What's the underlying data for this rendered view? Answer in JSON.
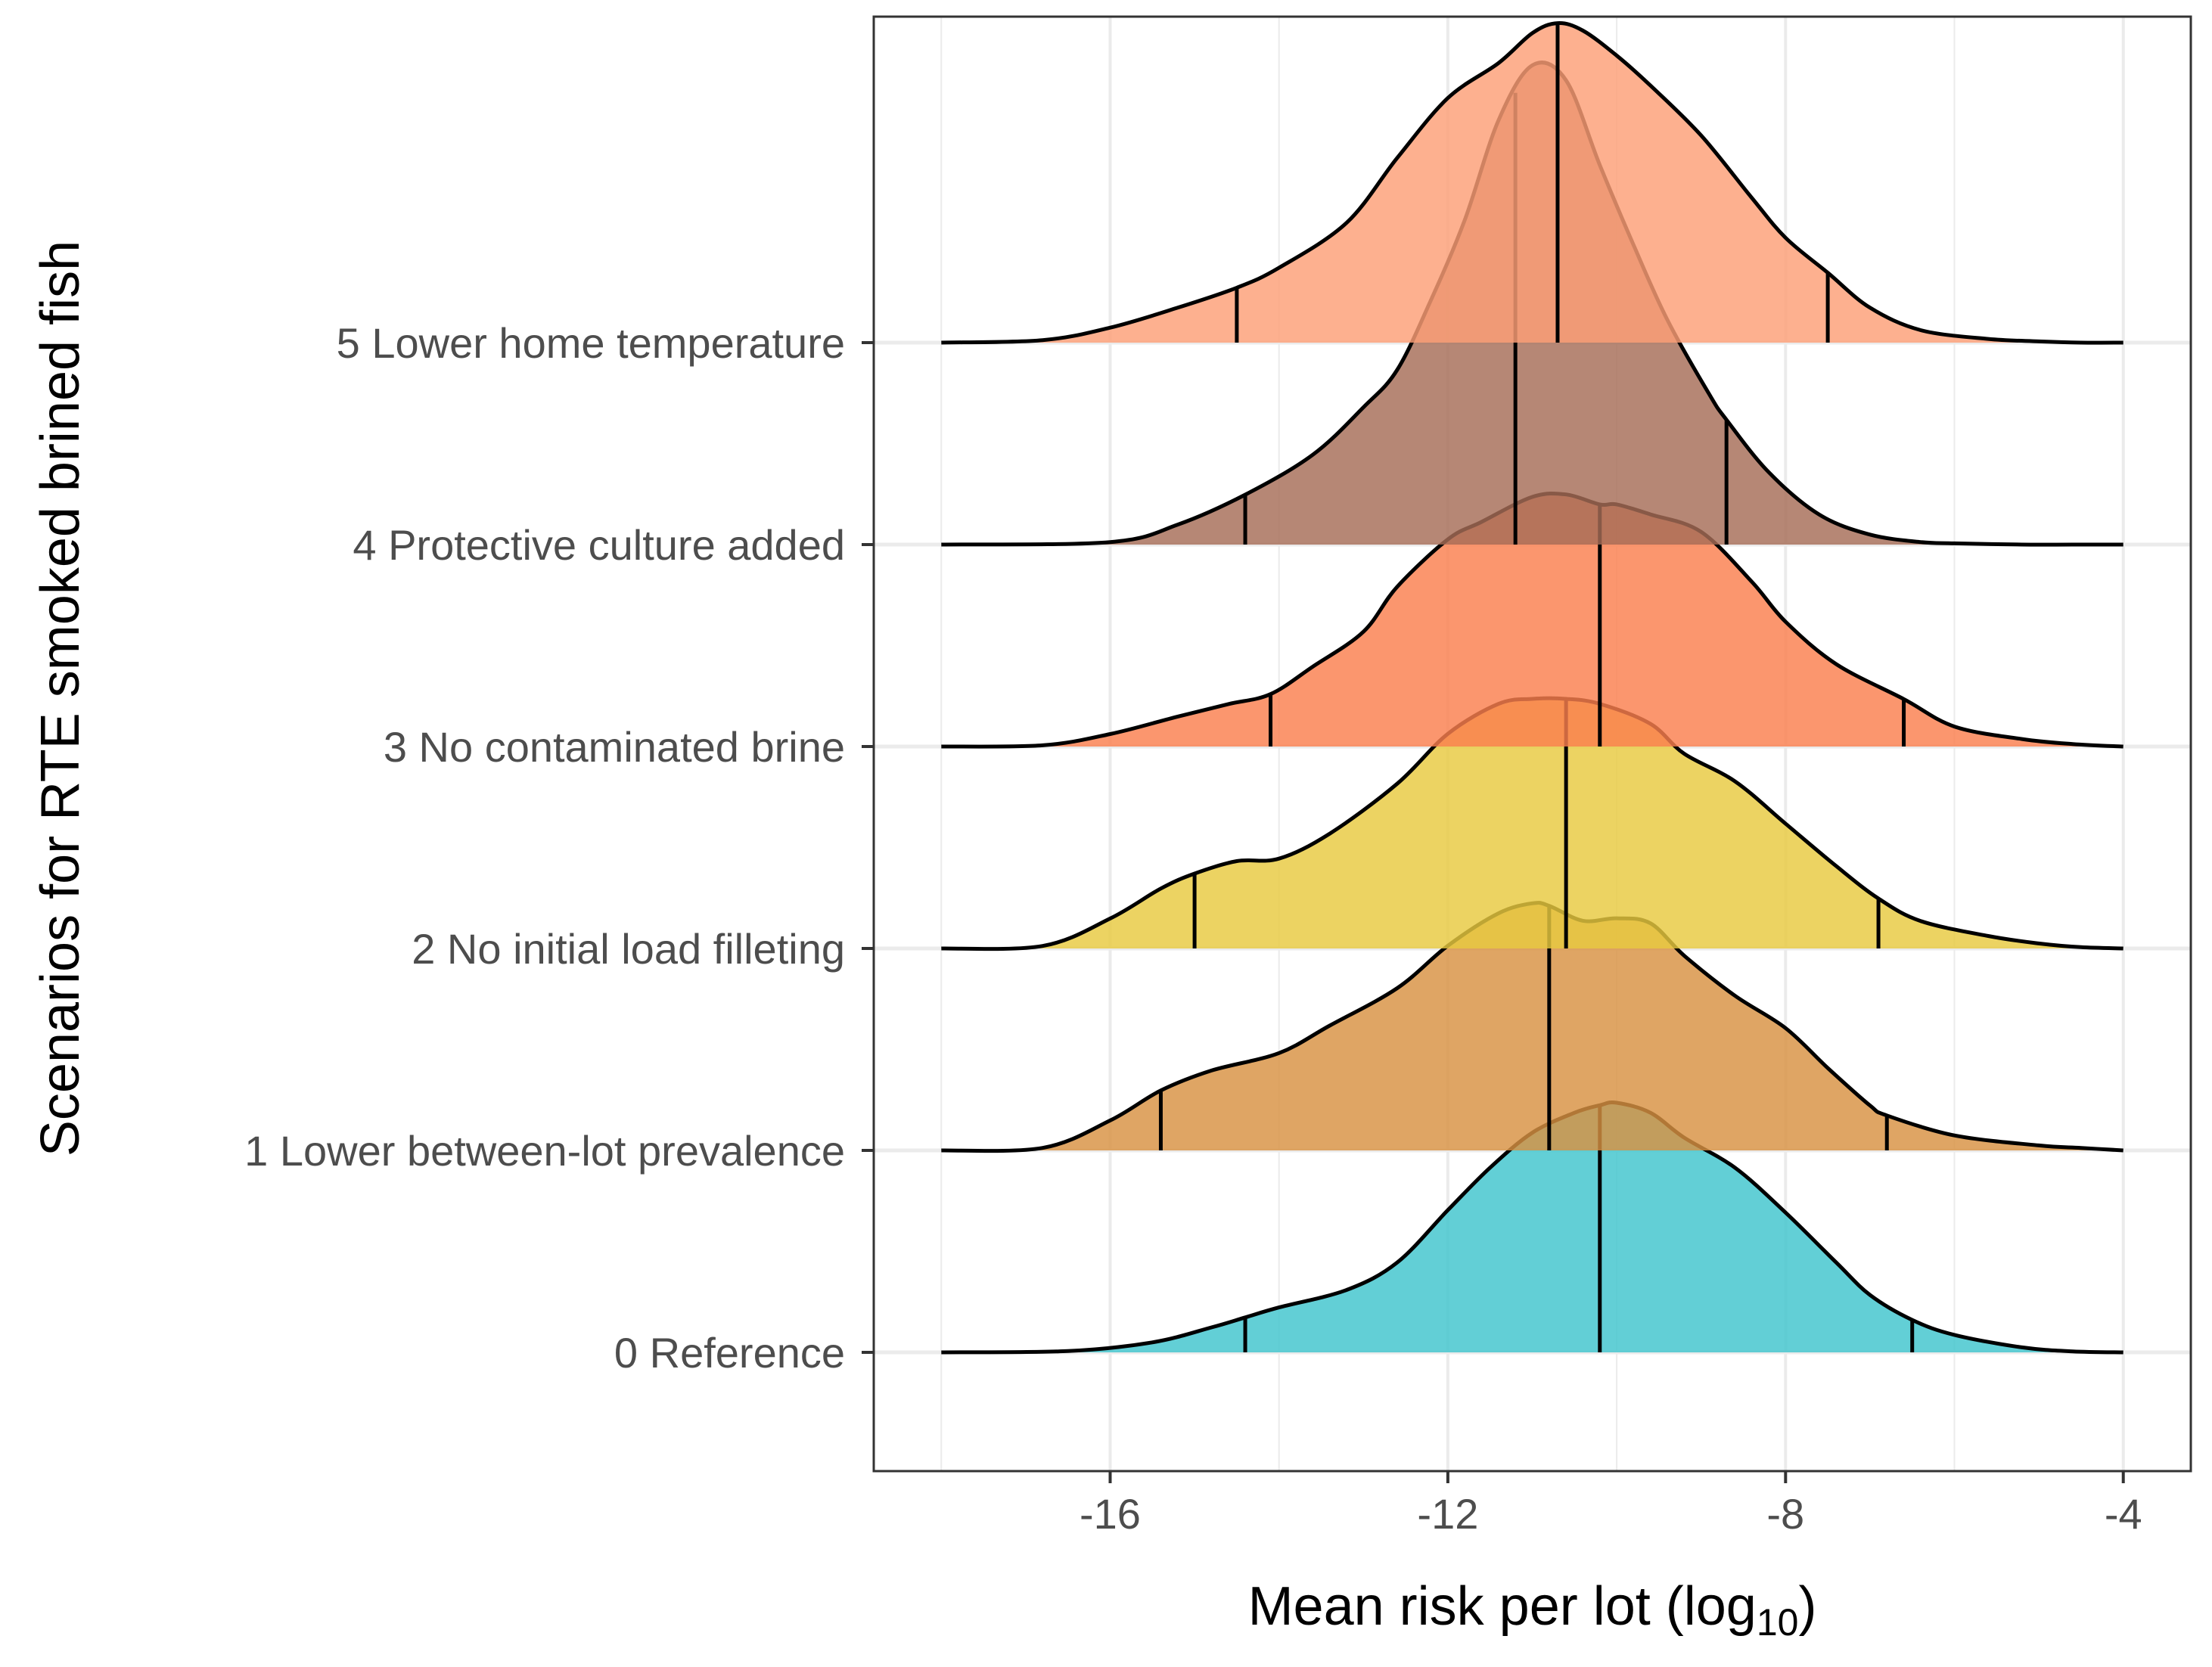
{
  "chart_data": {
    "type": "ridgeline-density",
    "xlabel": "Mean risk per lot (log",
    "xlabel_subscript": "10",
    "xlabel_suffix": ")",
    "ylabel": "Scenarios for RTE smoked brined fish",
    "xlim": [
      -18,
      -4
    ],
    "x_ticks": [
      -16,
      -12,
      -8,
      -4
    ],
    "x_tick_labels": [
      "-16",
      "-12",
      "-8",
      "-4"
    ],
    "grid": true,
    "border": true,
    "quantile_lines": "5th, 50th, 95th percentiles",
    "series": [
      {
        "name": "0 Reference",
        "color": "#3fc5cd",
        "quantiles": [
          -14.4,
          -10.2,
          -6.5
        ],
        "x": [
          -18.0,
          -16.5,
          -15.5,
          -14.8,
          -14.4,
          -14.0,
          -13.2,
          -12.6,
          -12.0,
          -11.5,
          -11.0,
          -10.5,
          -10.2,
          -10.0,
          -9.6,
          -9.2,
          -8.6,
          -8.0,
          -7.4,
          -7.0,
          -6.5,
          -6.0,
          -5.2,
          -4.6,
          -4.0
        ],
        "y": [
          0.0,
          0.005,
          0.04,
          0.1,
          0.14,
          0.18,
          0.25,
          0.36,
          0.57,
          0.74,
          0.88,
          0.96,
          0.99,
          1.0,
          0.96,
          0.86,
          0.74,
          0.56,
          0.36,
          0.23,
          0.13,
          0.07,
          0.02,
          0.004,
          0.0
        ]
      },
      {
        "name": "1 Lower between-lot prevalence",
        "color": "#d89142",
        "quantiles": [
          -15.4,
          -10.8,
          -6.8
        ],
        "x": [
          -18.0,
          -16.8,
          -16.0,
          -15.4,
          -14.8,
          -14.0,
          -13.4,
          -12.6,
          -12.0,
          -11.4,
          -11.0,
          -10.8,
          -10.4,
          -10.0,
          -9.6,
          -9.2,
          -8.6,
          -8.0,
          -7.5,
          -7.0,
          -6.8,
          -6.0,
          -5.0,
          -4.5,
          -4.0
        ],
        "y": [
          0.0,
          0.01,
          0.12,
          0.24,
          0.32,
          0.39,
          0.5,
          0.65,
          0.82,
          0.95,
          0.99,
          0.98,
          0.92,
          0.93,
          0.91,
          0.78,
          0.62,
          0.49,
          0.33,
          0.18,
          0.14,
          0.06,
          0.02,
          0.01,
          0.0
        ]
      },
      {
        "name": "2 No initial load filleting",
        "color": "#e8c93f",
        "quantiles": [
          -15.0,
          -10.6,
          -6.9
        ],
        "x": [
          -18.0,
          -16.8,
          -16.0,
          -15.4,
          -15.0,
          -14.5,
          -14.0,
          -13.4,
          -12.6,
          -12.0,
          -11.4,
          -11.0,
          -10.6,
          -10.2,
          -9.6,
          -9.2,
          -8.6,
          -8.0,
          -7.4,
          -6.9,
          -6.4,
          -5.6,
          -5.0,
          -4.5,
          -4.0
        ],
        "y": [
          0.0,
          0.01,
          0.12,
          0.24,
          0.3,
          0.35,
          0.36,
          0.46,
          0.66,
          0.86,
          0.98,
          1.0,
          1.0,
          0.98,
          0.9,
          0.78,
          0.67,
          0.5,
          0.33,
          0.2,
          0.11,
          0.05,
          0.02,
          0.005,
          0.0
        ]
      },
      {
        "name": "3 No contaminated brine",
        "color": "#fa7f4e",
        "quantiles": [
          -14.1,
          -10.2,
          -6.6
        ],
        "x": [
          -18.0,
          -16.8,
          -16.0,
          -15.2,
          -14.6,
          -14.1,
          -13.6,
          -13.0,
          -12.6,
          -12.0,
          -11.6,
          -11.0,
          -10.6,
          -10.2,
          -10.0,
          -9.6,
          -9.0,
          -8.4,
          -8.0,
          -7.4,
          -6.6,
          -6.0,
          -5.2,
          -4.6,
          -4.0
        ],
        "y": [
          0.0,
          0.005,
          0.05,
          0.12,
          0.17,
          0.21,
          0.32,
          0.46,
          0.64,
          0.83,
          0.9,
          1.0,
          1.01,
          0.97,
          0.97,
          0.93,
          0.86,
          0.66,
          0.5,
          0.33,
          0.19,
          0.08,
          0.03,
          0.01,
          0.0
        ]
      },
      {
        "name": "4 Protective culture added",
        "color": "#a66d57",
        "quantiles": [
          -14.4,
          -11.2,
          -8.7
        ],
        "x": [
          -18.0,
          -16.0,
          -15.2,
          -14.4,
          -13.6,
          -13.0,
          -12.6,
          -12.2,
          -11.8,
          -11.4,
          -11.0,
          -10.6,
          -10.2,
          -9.8,
          -9.4,
          -8.9,
          -8.7,
          -8.2,
          -7.6,
          -7.0,
          -6.4,
          -6.0,
          -5.2,
          -4.6,
          -4.0
        ],
        "y": [
          0.0,
          0.01,
          0.08,
          0.2,
          0.36,
          0.55,
          0.7,
          0.98,
          1.3,
          1.7,
          1.92,
          1.86,
          1.52,
          1.2,
          0.9,
          0.6,
          0.5,
          0.29,
          0.12,
          0.04,
          0.01,
          0.005,
          0.0,
          0.0,
          0.0
        ]
      },
      {
        "name": "5 Lower home temperature",
        "color": "#fd9f76",
        "quantiles": [
          -14.5,
          -10.7,
          -7.5
        ],
        "x": [
          -18.0,
          -16.8,
          -16.0,
          -15.2,
          -14.5,
          -14.0,
          -13.2,
          -12.6,
          -12.0,
          -11.4,
          -11.0,
          -10.7,
          -10.4,
          -10.0,
          -9.6,
          -9.0,
          -8.4,
          -8.0,
          -7.5,
          -7.0,
          -6.4,
          -5.6,
          -5.0,
          -4.5,
          -4.0
        ],
        "y": [
          0.0,
          0.01,
          0.06,
          0.14,
          0.22,
          0.3,
          0.48,
          0.74,
          0.98,
          1.12,
          1.24,
          1.28,
          1.25,
          1.15,
          1.03,
          0.83,
          0.58,
          0.42,
          0.28,
          0.14,
          0.05,
          0.015,
          0.005,
          0.0,
          0.0
        ]
      }
    ]
  }
}
